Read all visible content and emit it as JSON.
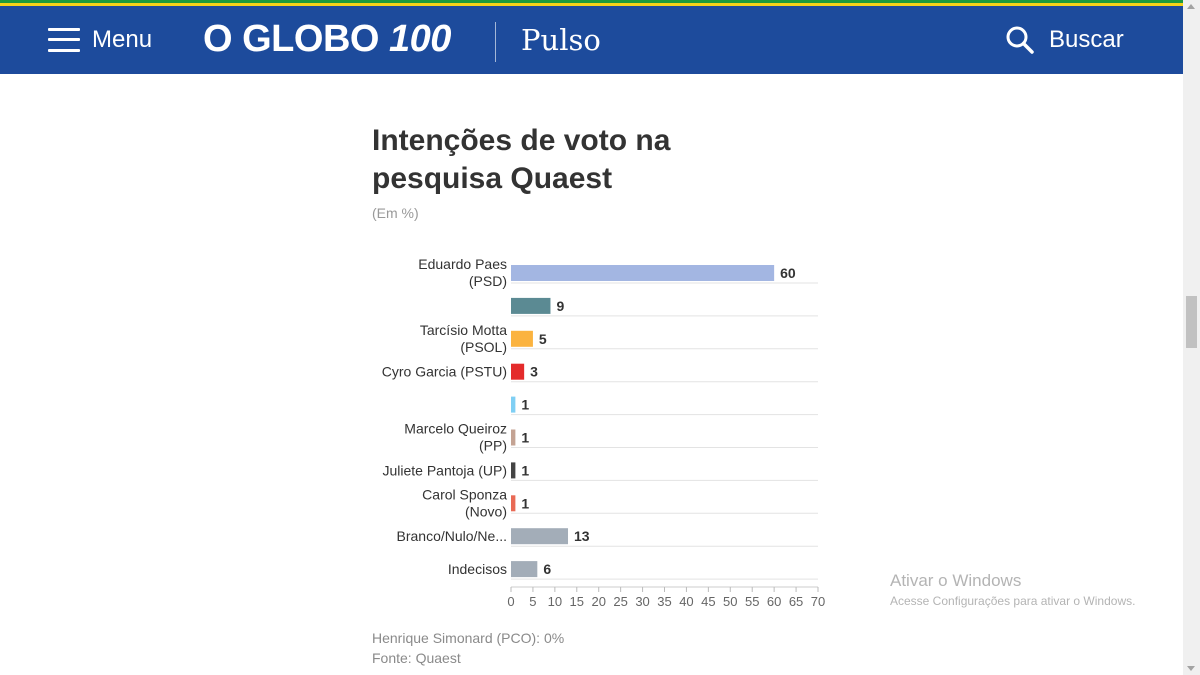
{
  "header": {
    "menu_label": "Menu",
    "logo_text": "O GLOBO",
    "logo_number": "100",
    "section": "Pulso",
    "search_label": "Buscar",
    "bg_color": "#1d4b9c"
  },
  "chart_data": {
    "type": "bar",
    "orientation": "horizontal",
    "title": "Intenções de voto na pesquisa Quaest",
    "subtitle": "(Em %)",
    "categories": [
      [
        "Eduardo Paes",
        "(PSD)"
      ],
      [],
      [
        "Tarcísio Motta",
        "(PSOL)"
      ],
      [
        "Cyro Garcia (PSTU)"
      ],
      [],
      [
        "Marcelo Queiroz",
        "(PP)"
      ],
      [
        "Juliete Pantoja (UP)"
      ],
      [
        "Carol Sponza",
        "(Novo)"
      ],
      [
        "Branco/Nulo/Ne..."
      ],
      [
        "Indecisos"
      ]
    ],
    "values": [
      60,
      9,
      5,
      3,
      1,
      1,
      1,
      1,
      13,
      6
    ],
    "colors": [
      "#a3b6e2",
      "#5b8a93",
      "#fbb33f",
      "#e42b2b",
      "#7fcff4",
      "#c4a393",
      "#444444",
      "#e96a55",
      "#a3adb8",
      "#a3adb8"
    ],
    "xlim": [
      0,
      70
    ],
    "xticks": [
      0,
      5,
      10,
      15,
      20,
      25,
      30,
      35,
      40,
      45,
      50,
      55,
      60,
      65,
      70
    ],
    "grid": true,
    "note": "Henrique Simonard (PCO): 0%",
    "source": "Fonte: Quaest"
  },
  "windows_watermark": {
    "title": "Ativar o Windows",
    "subtitle": "Acesse Configurações para ativar o Windows."
  }
}
